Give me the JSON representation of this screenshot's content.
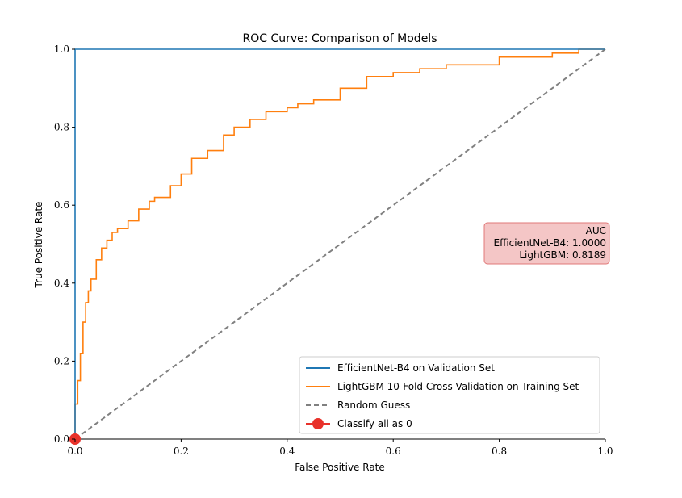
{
  "chart_data": {
    "type": "line",
    "title": "ROC Curve: Comparison of Models",
    "xlabel": "False Positive Rate",
    "ylabel": "True Positive Rate",
    "xlim": [
      0.0,
      1.0
    ],
    "ylim": [
      0.0,
      1.0
    ],
    "xticks": [
      "0.0",
      "0.2",
      "0.4",
      "0.6",
      "0.8",
      "1.0"
    ],
    "yticks": [
      "0.0",
      "0.2",
      "0.4",
      "0.6",
      "0.8",
      "1.0"
    ],
    "grid": false,
    "legend_position": "bottom-right",
    "series": [
      {
        "name": "EfficientNet-B4 on Validation Set",
        "color": "#1f77b4",
        "x": [
          0.0,
          0.0,
          1.0
        ],
        "y": [
          0.0,
          1.0,
          1.0
        ]
      },
      {
        "name": "LightGBM 10-Fold Cross Validation on Training Set",
        "color": "#ff7f0e",
        "x": [
          0.0,
          0.0,
          0.005,
          0.01,
          0.015,
          0.02,
          0.025,
          0.03,
          0.04,
          0.05,
          0.06,
          0.07,
          0.08,
          0.1,
          0.12,
          0.14,
          0.15,
          0.18,
          0.2,
          0.22,
          0.25,
          0.28,
          0.3,
          0.33,
          0.36,
          0.4,
          0.42,
          0.45,
          0.5,
          0.55,
          0.6,
          0.65,
          0.7,
          0.8,
          0.9,
          0.95,
          1.0
        ],
        "y": [
          0.0,
          0.09,
          0.15,
          0.22,
          0.3,
          0.35,
          0.38,
          0.41,
          0.46,
          0.49,
          0.51,
          0.53,
          0.54,
          0.56,
          0.59,
          0.61,
          0.62,
          0.65,
          0.68,
          0.72,
          0.74,
          0.78,
          0.8,
          0.82,
          0.84,
          0.85,
          0.86,
          0.87,
          0.9,
          0.93,
          0.94,
          0.95,
          0.96,
          0.98,
          0.99,
          1.0,
          1.0
        ]
      },
      {
        "name": "Random Guess",
        "color": "#808080",
        "dashed": true,
        "x": [
          0.0,
          1.0
        ],
        "y": [
          0.0,
          1.0
        ]
      },
      {
        "name": "Classify all as 0",
        "color": "#e8312a",
        "marker": "circle",
        "x": [
          0.0
        ],
        "y": [
          0.0
        ]
      }
    ],
    "annotation": {
      "lines": [
        "AUC",
        "EfficientNet-B4:  1.0000",
        "LightGBM:  0.8189"
      ],
      "background": "#f4c6c6",
      "border": "#e07878",
      "position": "right-middle"
    }
  }
}
